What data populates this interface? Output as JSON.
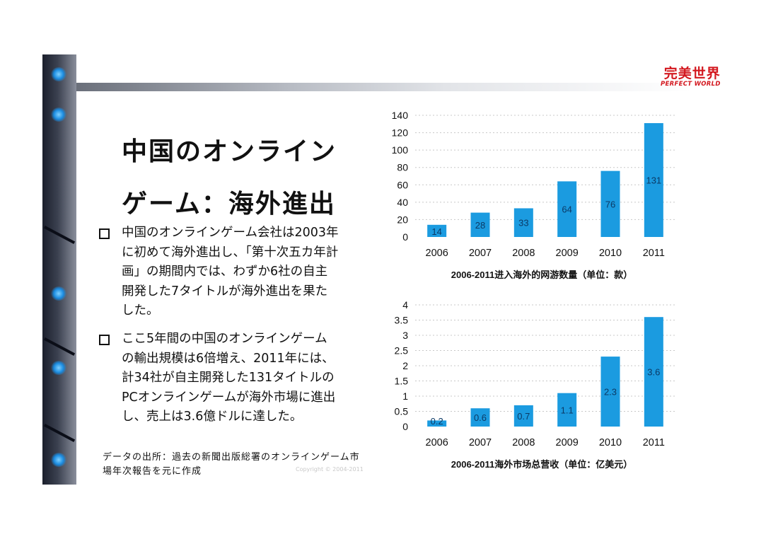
{
  "logo": {
    "zh": "完美世界",
    "en": "PERFECT WORLD"
  },
  "slide": {
    "title_line1": "中国のオンライン",
    "title_line2": "ゲーム：海外進出",
    "bullets": [
      "中国のオンラインゲーム会社は2003年に初めて海外進出し、「第十次五カ年計画」の期間内では、わずか6社の自主開発した7タイトルが海外進出を果たした。",
      "ここ5年間の中国のオンラインゲームの輸出規模は6倍増え、2011年には、計34社が自主開発した131タイトルのPCオンラインゲームが海外市場に進出し、売上は3.6億ドルに達した。"
    ],
    "source_note": "データの出所：過去の新聞出版総署のオンラインゲーム市場年次報告を元に作成",
    "copyright": "Copyright © 2004-2011"
  },
  "colors": {
    "bar": "#1b9be0",
    "bar_label": "#0b3a66",
    "grid": "#c8c8c8",
    "logo": "#d3171e"
  },
  "chart_data": [
    {
      "type": "bar",
      "title": "2006-2011进入海外的网游数量（单位：款）",
      "categories": [
        "2006",
        "2007",
        "2008",
        "2009",
        "2010",
        "2011"
      ],
      "values": [
        14,
        28,
        33,
        64,
        76,
        131
      ],
      "value_labels": [
        "14",
        "28",
        "33",
        "64",
        "76",
        "131"
      ],
      "ylim": [
        0,
        140
      ],
      "yticks": [
        0,
        20,
        40,
        60,
        80,
        100,
        120,
        140
      ],
      "ytick_labels": [
        "0",
        "20",
        "40",
        "60",
        "80",
        "100",
        "120",
        "140"
      ],
      "xlabel": "",
      "ylabel": "",
      "grid": true
    },
    {
      "type": "bar",
      "title": "2006-2011海外市场总营收（单位：亿美元）",
      "categories": [
        "2006",
        "2007",
        "2008",
        "2009",
        "2010",
        "2011"
      ],
      "values": [
        0.2,
        0.6,
        0.7,
        1.1,
        2.3,
        3.6
      ],
      "value_labels": [
        "0.2",
        "0.6",
        "0.7",
        "1.1",
        "2.3",
        "3.6"
      ],
      "ylim": [
        0,
        4
      ],
      "yticks": [
        0,
        0.5,
        1,
        1.5,
        2,
        2.5,
        3,
        3.5,
        4
      ],
      "ytick_labels": [
        "0",
        "0.5",
        "1",
        "1.5",
        "2",
        "2.5",
        "3",
        "3.5",
        "4"
      ],
      "xlabel": "",
      "ylabel": "",
      "grid": true
    }
  ]
}
